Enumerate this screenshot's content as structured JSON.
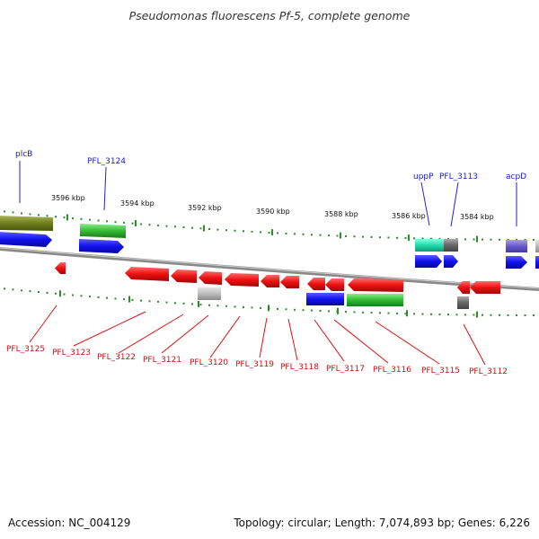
{
  "title": "Pseudomonas fluorescens Pf-5, complete genome",
  "footer": {
    "accession": "Accession: NC_004129",
    "summary": "Topology: circular; Length: 7,074,893 bp; Genes: 6,226"
  },
  "colors": {
    "blue_gene": "#1010ee",
    "red_gene": "#ee1010",
    "green_gene": "#33bb33",
    "olive_gene": "#6e7d1c",
    "teal_gene": "#22ddaa",
    "gray_gene": "#666666",
    "lightgray_gene": "#bbbbbb",
    "purple_gene": "#6a5acd",
    "tick_green": "#2e8b2e",
    "backbone": "#888888"
  },
  "scale_labels": [
    "3596 kbp",
    "3594 kbp",
    "3592 kbp",
    "3590 kbp",
    "3588 kbp",
    "3586 kbp",
    "3584 kbp"
  ],
  "gene_labels_top": [
    "plcB",
    "PFL_3124",
    "uppP",
    "PFL_3113",
    "acpD"
  ],
  "gene_labels_bottom": [
    "PFL_3125",
    "PFL_3123",
    "PFL_3122",
    "PFL_3121",
    "PFL_3120",
    "PFL_3119",
    "PFL_3118",
    "PFL_3117",
    "PFL_3116",
    "PFL_3115",
    "PFL_3112"
  ]
}
